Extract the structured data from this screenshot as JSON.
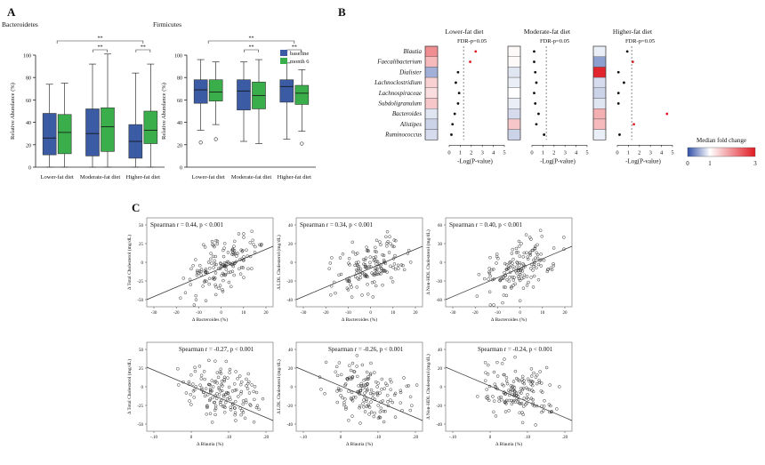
{
  "panel_labels": {
    "a": "A",
    "b": "B",
    "c": "C"
  },
  "colors": {
    "baseline": "#3b5ba5",
    "month6": "#3aae4a",
    "neg": "#3050a8",
    "pos": "#e01a22"
  },
  "chart_data": [
    {
      "id": "bacteroidetes",
      "type": "box",
      "title": "Bacteroidetes",
      "ylabel": "Relative Abundance (%)",
      "ylim": [
        0,
        100
      ],
      "yticks": [
        "0",
        "20",
        "40",
        "60",
        "80",
        "100"
      ],
      "categories": [
        "Lower-fat diet",
        "Moderate-fat diet",
        "Higher-fat diet"
      ],
      "legend": [
        "baseline",
        "month 6"
      ],
      "series": [
        {
          "name": "baseline",
          "boxes": [
            {
              "min": 0,
              "q1": 11,
              "median": 26,
              "q3": 48,
              "max": 74
            },
            {
              "min": 0,
              "q1": 10,
              "median": 30,
              "q3": 52,
              "max": 92
            },
            {
              "min": 0,
              "q1": 8,
              "median": 23,
              "q3": 38,
              "max": 84
            }
          ]
        },
        {
          "name": "month 6",
          "boxes": [
            {
              "min": 0,
              "q1": 12,
              "median": 31,
              "q3": 47,
              "max": 75
            },
            {
              "min": 0,
              "q1": 14,
              "median": 36,
              "q3": 53,
              "max": 101
            },
            {
              "min": 0,
              "q1": 21,
              "median": 33,
              "q3": 50,
              "max": 92
            }
          ]
        }
      ],
      "sig": [
        "**",
        "**",
        "**"
      ]
    },
    {
      "id": "firmicutes",
      "type": "box",
      "title": "Firmicutes",
      "ylabel": "Relative Abundance (%)",
      "ylim": [
        0,
        100
      ],
      "yticks": [
        "0",
        "20",
        "40",
        "60",
        "80",
        "100"
      ],
      "categories": [
        "Lower-fat diet",
        "Moderate-fat diet",
        "Higher-fat diet"
      ],
      "legend": [
        "baseline",
        "month 6"
      ],
      "series": [
        {
          "name": "baseline",
          "boxes": [
            {
              "min": 33,
              "q1": 57,
              "median": 69,
              "q3": 78,
              "max": 96,
              "out": [
                22
              ]
            },
            {
              "min": 23,
              "q1": 51,
              "median": 68,
              "q3": 78,
              "max": 94
            },
            {
              "min": 25,
              "q1": 58,
              "median": 72,
              "q3": 78,
              "max": 93
            }
          ]
        },
        {
          "name": "month 6",
          "boxes": [
            {
              "min": 38,
              "q1": 59,
              "median": 67,
              "q3": 78,
              "max": 94,
              "out": [
                25
              ]
            },
            {
              "min": 21,
              "q1": 52,
              "median": 64,
              "q3": 76,
              "max": 96
            },
            {
              "min": 32,
              "q1": 56,
              "median": 66,
              "q3": 73,
              "max": 87,
              "out": [
                21
              ]
            }
          ]
        }
      ],
      "sig": [
        "**",
        "**",
        "**"
      ]
    },
    {
      "id": "heatmap",
      "type": "heatmap",
      "titles": [
        "Lower-fat diet",
        "Moderate-fat diet",
        "Higher-fat diet"
      ],
      "fdr_label": "FDR-p=0.05",
      "xlabel": "-Log(P-value)",
      "xticks": [
        "0",
        "1",
        "2",
        "3",
        "4",
        "5"
      ],
      "rows": [
        "Blautia",
        "Faecalibacterium",
        "Dialister",
        "Lachnoclostridium",
        "Lachnospiraceae",
        "Subdoligranulum",
        "Bacteroides",
        "Alistipes",
        "Ruminococcus"
      ],
      "fold_change": [
        [
          2.0,
          1.05,
          0.9
        ],
        [
          1.6,
          1.05,
          0.45
        ],
        [
          0.55,
          0.85,
          2.9
        ],
        [
          1.4,
          0.9,
          0.8
        ],
        [
          1.3,
          1.0,
          0.75
        ],
        [
          1.5,
          0.9,
          0.85
        ],
        [
          0.85,
          0.8,
          1.7
        ],
        [
          0.75,
          1.5,
          1.6
        ],
        [
          0.8,
          0.75,
          0.9
        ]
      ],
      "neglogp": [
        [
          2.4,
          0.2,
          0.9
        ],
        [
          1.9,
          0.2,
          1.4
        ],
        [
          0.8,
          0.3,
          0.1
        ],
        [
          0.6,
          0.4,
          0.6
        ],
        [
          0.9,
          0.2,
          0.1
        ],
        [
          0.8,
          0.3,
          0.1
        ],
        [
          0.5,
          0.6,
          4.5
        ],
        [
          0.3,
          0.4,
          1.5
        ],
        [
          0.2,
          1.1,
          0.2
        ]
      ],
      "legend_title": "Median fold change",
      "legend_ticks": [
        "0",
        "1",
        "3"
      ]
    },
    {
      "id": "scatter",
      "type": "scatter",
      "plots": [
        {
          "label": "Spearman r = 0.44, p < 0.001",
          "ylabel": "Δ Total Cholesterol (mg/dL)",
          "xlabel": "Δ Bacteroides (%)",
          "xticks": [
            "-30",
            "-20",
            "-10",
            "0",
            "10",
            "20"
          ],
          "yticks": [
            "50",
            "25",
            "0",
            "-25",
            "-50"
          ],
          "slope": 1.2,
          "intercept": 3,
          "r": 0.44,
          "seed": 11
        },
        {
          "label": "Spearman r = 0.34, p < 0.001",
          "ylabel": "Δ LDL Cholesterol (mg/dL)",
          "xlabel": "Δ Bacteroides (%)",
          "xticks": [
            "-30",
            "-20",
            "-10",
            "0",
            "10",
            "20"
          ],
          "yticks": [
            "40",
            "20",
            "0",
            "-20",
            "-40"
          ],
          "slope": 0.9,
          "intercept": -1,
          "r": 0.34,
          "seed": 23
        },
        {
          "label": "Spearman r = 0.40, p < 0.001",
          "ylabel": "Δ Non-HDL Cholesterol (mg/dL)",
          "xlabel": "Δ Bacteroides (%)",
          "xticks": [
            "-30",
            "-20",
            "-10",
            "0",
            "10",
            "20"
          ],
          "yticks": [
            "60",
            "30",
            "0",
            "-30",
            "-60"
          ],
          "slope": 1.1,
          "intercept": 2,
          "r": 0.4,
          "seed": 37
        },
        {
          "label": "Spearman r = -0.27, p < 0.001",
          "ylabel": "Δ Total Cholesterol (mg/dL)",
          "xlabel": "Δ Blautia (%)",
          "xticks": [
            "-.10",
            "0",
            ".10",
            ".20"
          ],
          "yticks": [
            "50",
            "25",
            "0",
            "-25",
            "-50"
          ],
          "slope": -110,
          "intercept": -2,
          "r": -0.27,
          "seed": 51
        },
        {
          "label": "Spearman r = -0.26, p < 0.001",
          "ylabel": "Δ LDL Cholesterol (mg/dL)",
          "xlabel": "Δ Blautia (%)",
          "xticks": [
            "-.10",
            "0",
            ".10",
            ".20"
          ],
          "yticks": [
            "40",
            "20",
            "0",
            "-20",
            "-40"
          ],
          "slope": -90,
          "intercept": -1,
          "r": -0.26,
          "seed": 67
        },
        {
          "label": "Spearman r = -0.24, p < 0.001",
          "ylabel": "Δ Non-HDL Cholesterol (mg/dL)",
          "xlabel": "Δ Blautia (%)",
          "xticks": [
            "-.10",
            "0",
            ".10",
            ".20"
          ],
          "yticks": [
            "40",
            "20",
            "0",
            "-20",
            "-40"
          ],
          "slope": -100,
          "intercept": -1,
          "r": -0.24,
          "seed": 83
        }
      ]
    }
  ]
}
